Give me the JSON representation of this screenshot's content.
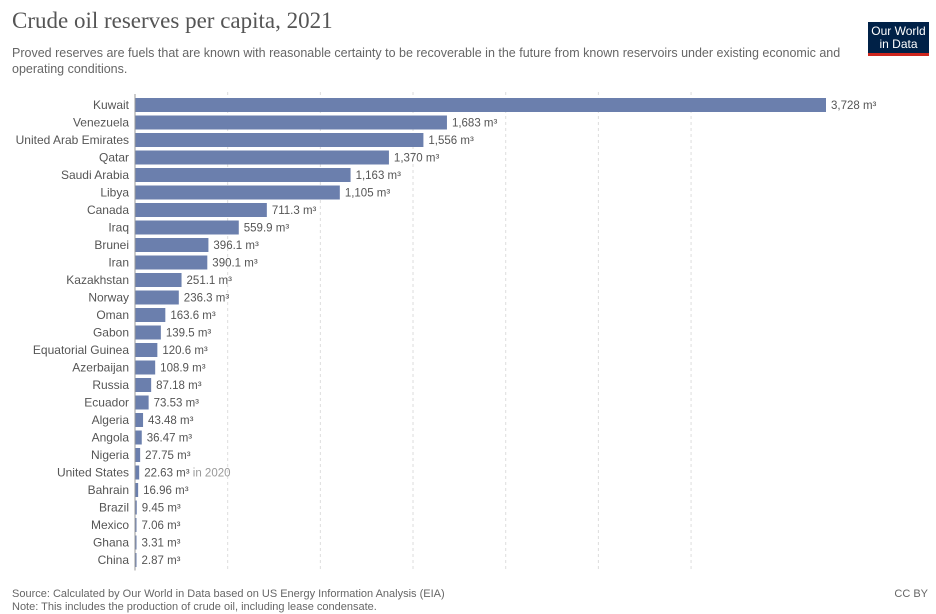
{
  "header": {
    "title": "Crude oil reserves per capita, 2021",
    "subtitle": "Proved reserves are fuels that are known with reasonable certainty to be recoverable in the future from known reservoirs under existing economic and operating conditions.",
    "logo_line1": "Our World",
    "logo_line2": "in Data"
  },
  "footer": {
    "source": "Source: Calculated by Our World in Data based on US Energy Information Analysis (EIA)",
    "note": "Note: This includes the production of crude oil, including lease condensate.",
    "license": "CC BY"
  },
  "colors": {
    "bar": "#6b7fad",
    "brand": "#002147",
    "brand_accent": "#ce261e"
  },
  "chart_data": {
    "type": "bar",
    "orientation": "horizontal",
    "unit": "m³",
    "xlim": [
      0,
      3728
    ],
    "grid": true,
    "categories": [
      "Kuwait",
      "Venezuela",
      "United Arab Emirates",
      "Qatar",
      "Saudi Arabia",
      "Libya",
      "Canada",
      "Iraq",
      "Brunei",
      "Iran",
      "Kazakhstan",
      "Norway",
      "Oman",
      "Gabon",
      "Equatorial Guinea",
      "Azerbaijan",
      "Russia",
      "Ecuador",
      "Algeria",
      "Angola",
      "Nigeria",
      "United States",
      "Bahrain",
      "Brazil",
      "Mexico",
      "Ghana",
      "China"
    ],
    "values": [
      3728,
      1683,
      1556,
      1370,
      1163,
      1105,
      711.3,
      559.9,
      396.1,
      390.1,
      251.1,
      236.3,
      163.6,
      139.5,
      120.6,
      108.9,
      87.18,
      73.53,
      43.48,
      36.47,
      27.75,
      22.63,
      16.96,
      9.45,
      7.06,
      3.31,
      2.87
    ],
    "labels": [
      "3,728 m³",
      "1,683 m³",
      "1,556 m³",
      "1,370 m³",
      "1,163 m³",
      "1,105 m³",
      "711.3 m³",
      "559.9 m³",
      "396.1 m³",
      "390.1 m³",
      "251.1 m³",
      "236.3 m³",
      "163.6 m³",
      "139.5 m³",
      "120.6 m³",
      "108.9 m³",
      "87.18 m³",
      "73.53 m³",
      "43.48 m³",
      "36.47 m³",
      "27.75 m³",
      "22.63 m³",
      "16.96 m³",
      "9.45 m³",
      "7.06 m³",
      "3.31 m³",
      "2.87 m³"
    ],
    "annotations": [
      {
        "category": "United States",
        "text": "in 2020"
      }
    ]
  }
}
